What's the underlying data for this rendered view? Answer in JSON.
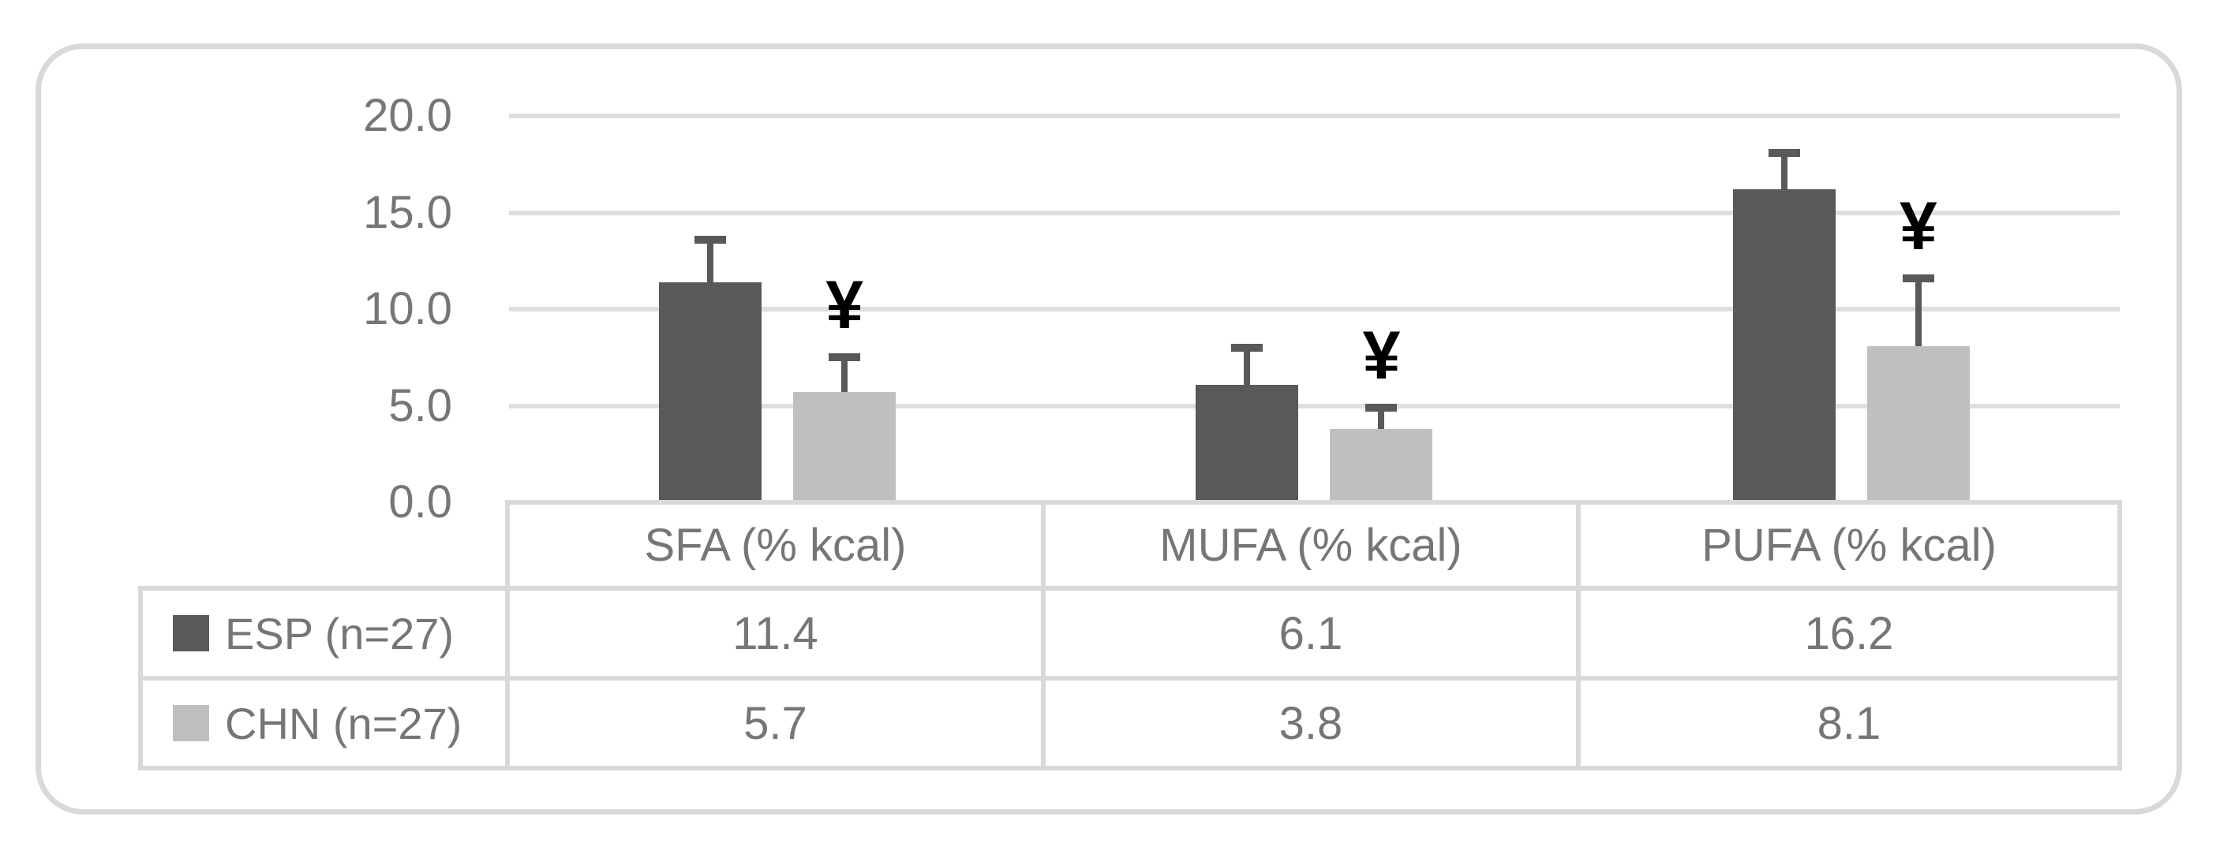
{
  "chart_data": {
    "type": "bar",
    "title": "",
    "xlabel": "",
    "ylabel": "",
    "categories": [
      "SFA (% kcal)",
      "MUFA (% kcal)",
      "PUFA (% kcal)"
    ],
    "series": [
      {
        "name": "ESP (n=27)",
        "values": [
          11.4,
          6.1,
          16.2
        ],
        "error_up": [
          2.4,
          2.1,
          2.1
        ],
        "color": "#595959",
        "sig_markers": [
          "",
          "",
          ""
        ]
      },
      {
        "name": "CHN (n=27)",
        "values": [
          5.7,
          3.8,
          8.1
        ],
        "error_up": [
          2.0,
          1.3,
          3.7
        ],
        "color": "#bfbfbf",
        "sig_markers": [
          "¥",
          "¥",
          "¥"
        ]
      }
    ],
    "ylim": [
      0,
      20
    ],
    "ytick_labels": [
      "20.0",
      "15.0",
      "10.0",
      "5.0",
      "0.0"
    ],
    "grid": true,
    "legend_position": "table-left",
    "table_shown": true
  },
  "style": {
    "grid_color": "#dfdfdf",
    "frame_border_color": "#d9d9d9",
    "table_border_color": "#d9d9d9",
    "text_color": "#767676",
    "error_bar_color": "#595959",
    "marker_color": "#000000",
    "background": "#ffffff"
  }
}
